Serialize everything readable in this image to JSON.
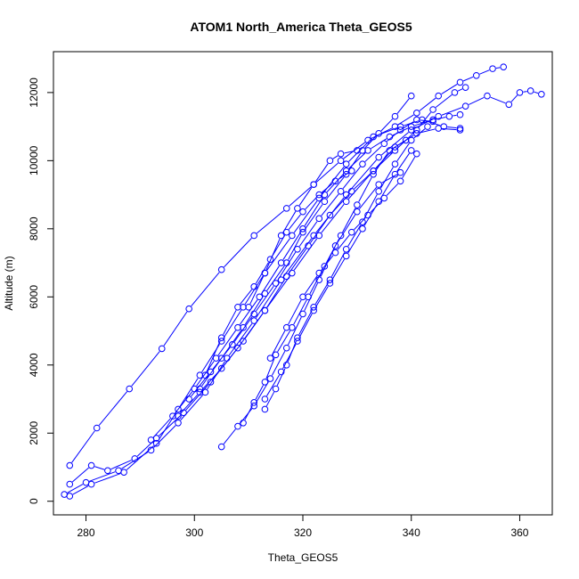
{
  "chart_data": {
    "type": "line",
    "title": "ATOM1 North_America Theta_GEOS5",
    "xlabel": "Theta_GEOS5",
    "ylabel": "Altitude (m)",
    "xlim": [
      274,
      366
    ],
    "ylim": [
      -400,
      13200
    ],
    "x_ticks": [
      280,
      300,
      320,
      340,
      360
    ],
    "y_ticks": [
      0,
      2000,
      4000,
      6000,
      8000,
      10000,
      12000
    ],
    "grid": false,
    "marker": "open-circle",
    "color": "#0000ff",
    "series": [
      {
        "x": [
          277,
          282,
          288,
          294,
          299,
          305,
          311,
          317,
          322,
          327,
          332,
          337,
          341,
          345,
          349,
          352,
          355,
          357
        ],
        "y": [
          1050,
          2150,
          3300,
          4480,
          5650,
          6800,
          7800,
          8600,
          9300,
          10000,
          10600,
          11000,
          11400,
          11900,
          12300,
          12500,
          12700,
          12750
        ]
      },
      {
        "x": [
          277,
          281,
          284,
          289,
          293,
          298,
          303,
          308,
          313,
          318,
          323,
          328,
          333,
          337,
          341,
          345,
          349
        ],
        "y": [
          500,
          1050,
          900,
          1250,
          1850,
          2600,
          3500,
          4500,
          5600,
          6700,
          7800,
          8800,
          9700,
          10400,
          10800,
          10950,
          10900
        ]
      },
      {
        "x": [
          276,
          280,
          286,
          292,
          297,
          302,
          306,
          311,
          316,
          322,
          328,
          334,
          340,
          345,
          350,
          354,
          358,
          360,
          362,
          364
        ],
        "y": [
          200,
          550,
          900,
          1500,
          2300,
          3200,
          4200,
          5300,
          6500,
          7800,
          9000,
          10100,
          10900,
          11300,
          11600,
          11900,
          11650,
          12000,
          12050,
          11950
        ]
      },
      {
        "x": [
          277,
          281,
          287,
          293,
          297,
          301,
          305,
          309,
          313,
          318,
          323,
          328,
          333,
          338,
          342,
          346,
          349
        ],
        "y": [
          150,
          500,
          850,
          1700,
          2700,
          3700,
          4700,
          5700,
          6700,
          7800,
          8900,
          9900,
          10700,
          11000,
          11200,
          11000,
          10950
        ]
      },
      {
        "x": [
          292,
          296,
          300,
          304,
          308,
          312,
          316,
          320,
          324,
          328,
          332,
          336,
          340,
          344,
          347,
          349
        ],
        "y": [
          1800,
          2500,
          3300,
          4200,
          5100,
          6000,
          7000,
          8000,
          9000,
          9700,
          10300,
          10700,
          11000,
          11200,
          11300,
          11350
        ]
      },
      {
        "x": [
          297,
          301,
          305,
          309,
          313,
          317,
          321,
          325,
          329,
          333,
          337,
          341,
          344,
          348,
          350
        ],
        "y": [
          2500,
          3200,
          3900,
          4700,
          5600,
          6600,
          7500,
          8400,
          9100,
          9700,
          10300,
          10900,
          11500,
          12000,
          12150
        ]
      },
      {
        "x": [
          299,
          303,
          307,
          311,
          315,
          319,
          323,
          327,
          331,
          335,
          338,
          341,
          344
        ],
        "y": [
          3000,
          3800,
          4600,
          5500,
          6400,
          7400,
          8300,
          9100,
          9900,
          10500,
          10900,
          11200,
          11150
        ]
      },
      {
        "x": [
          301,
          305,
          309,
          313,
          317,
          320,
          324,
          328,
          331,
          334,
          337,
          340
        ],
        "y": [
          3300,
          4200,
          5100,
          6100,
          7000,
          7900,
          8800,
          9600,
          10300,
          10800,
          11300,
          11900
        ]
      },
      {
        "x": [
          305,
          308,
          311,
          314,
          317,
          320,
          323,
          326,
          330,
          334,
          338
        ],
        "y": [
          1600,
          2200,
          2800,
          3600,
          4500,
          5500,
          6500,
          7500,
          8500,
          9300,
          9650
        ]
      },
      {
        "x": [
          309,
          311,
          313,
          315,
          318,
          321,
          324,
          327,
          330,
          333,
          336,
          339
        ],
        "y": [
          2300,
          2900,
          3500,
          4300,
          5100,
          6000,
          6900,
          7800,
          8700,
          9600,
          10300,
          10600
        ]
      },
      {
        "x": [
          313,
          315,
          317,
          319,
          322,
          325,
          328,
          331,
          334,
          337,
          340,
          343
        ],
        "y": [
          2700,
          3300,
          4000,
          4800,
          5700,
          6500,
          7400,
          8200,
          9100,
          9900,
          10600,
          11000
        ]
      },
      {
        "x": [
          313,
          316,
          319,
          322,
          325,
          328,
          331,
          334,
          337,
          340
        ],
        "y": [
          3000,
          3800,
          4700,
          5600,
          6400,
          7200,
          8000,
          8800,
          9600,
          10300
        ]
      },
      {
        "x": [
          302,
          305,
          308,
          311,
          314,
          317,
          320,
          323,
          326,
          329
        ],
        "y": [
          3700,
          4800,
          5700,
          6300,
          7100,
          7900,
          8500,
          9000,
          9400,
          9700
        ]
      },
      {
        "x": [
          310,
          313,
          316,
          319,
          322,
          325,
          327,
          330
        ],
        "y": [
          5700,
          6700,
          7800,
          8600,
          9300,
          10000,
          10200,
          10300
        ]
      },
      {
        "x": [
          314,
          317,
          320,
          323,
          326,
          329,
          332,
          335,
          338,
          341
        ],
        "y": [
          4200,
          5100,
          6000,
          6700,
          7300,
          7900,
          8400,
          8900,
          9400,
          10200
        ]
      }
    ]
  }
}
